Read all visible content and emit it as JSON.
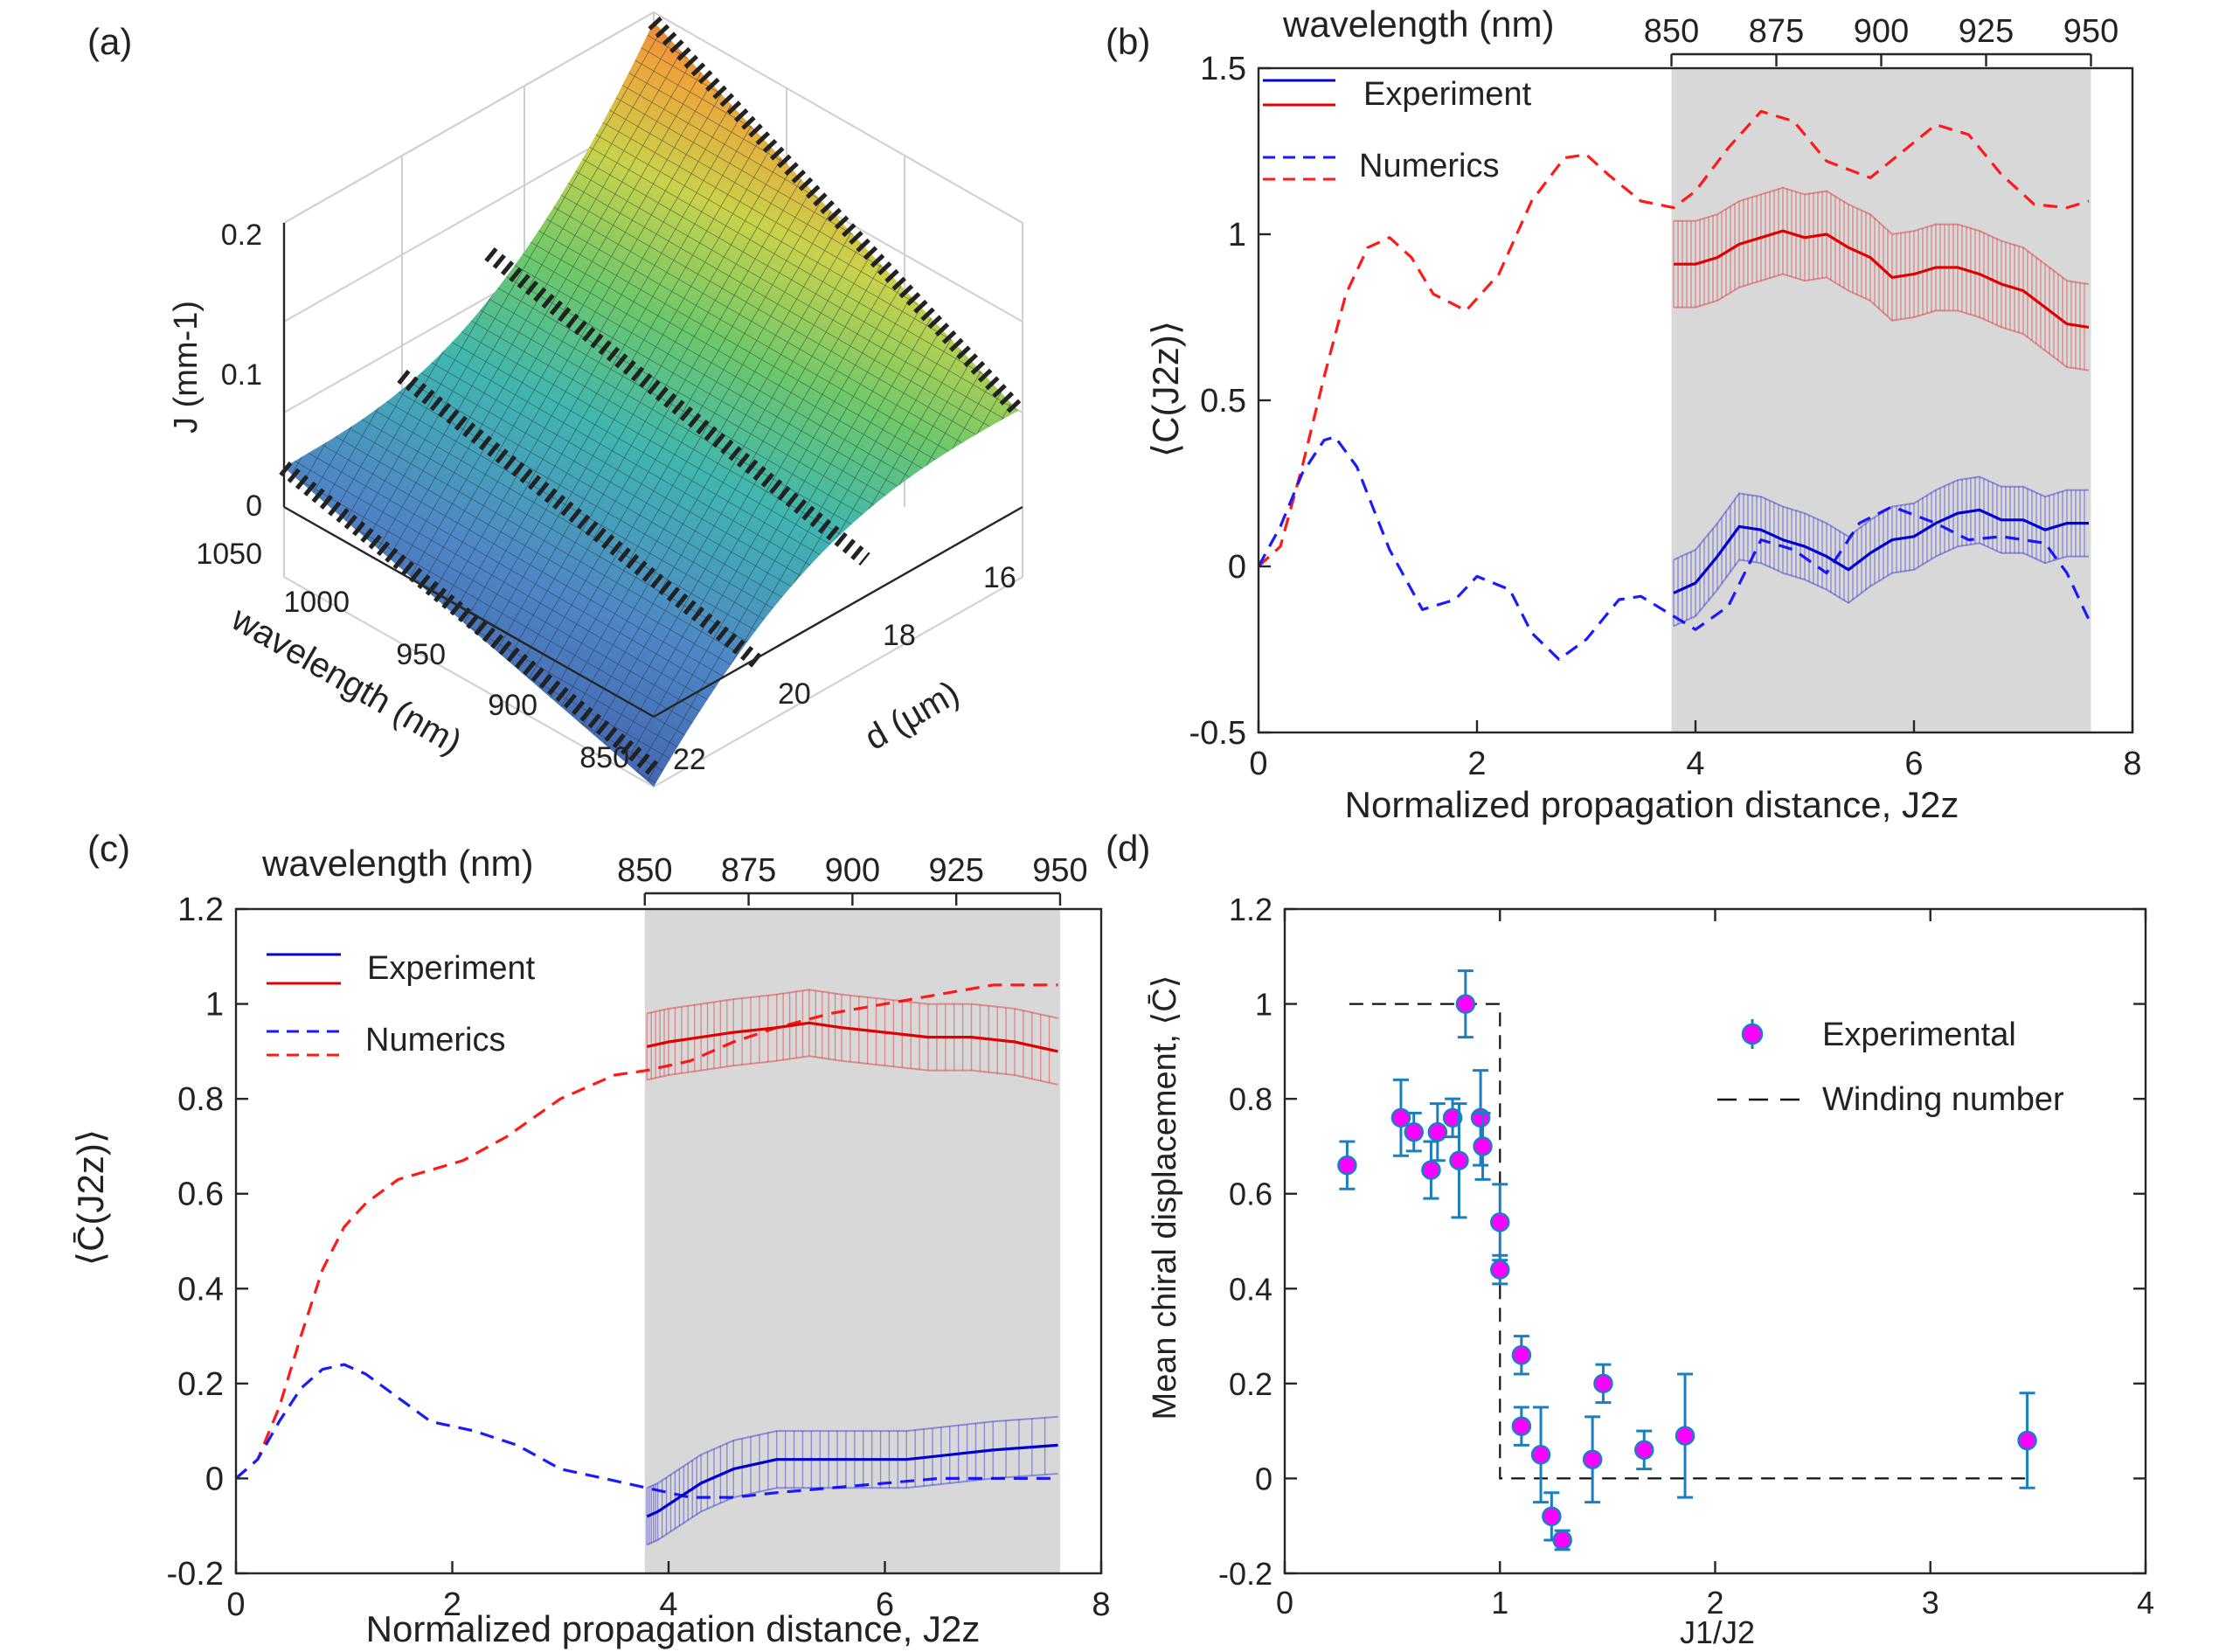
{
  "panels": {
    "a": {
      "label": "(a)"
    },
    "b": {
      "label": "(b)"
    },
    "c": {
      "label": "(c)"
    },
    "d": {
      "label": "(d)"
    }
  },
  "chart_data": [
    {
      "id": "a",
      "type": "surface3d",
      "title": "",
      "zlabel": "J (mm-1)",
      "xlabel": "wavelength (nm)",
      "ylabel": "d (µm)",
      "z_ticks": [
        "0",
        "0.1",
        "0.2"
      ],
      "wavelength_ticks": [
        "1050",
        "1000",
        "950",
        "900",
        "850"
      ],
      "d_ticks": [
        "16",
        "18",
        "20",
        "22"
      ],
      "colormap": [
        "#3e59a8",
        "#4f86c6",
        "#3fb6b0",
        "#6cc86a",
        "#c9d24a",
        "#f0a23a",
        "#d9563a"
      ],
      "marker_color": "#222222"
    },
    {
      "id": "b",
      "type": "line",
      "xlabel": "Normalized propagation distance, J2z",
      "ylabel": "⟨C(J2z)⟩",
      "xlim": [
        0,
        8
      ],
      "ylim": [
        -0.5,
        1.5
      ],
      "xticks": [
        "0",
        "2",
        "4",
        "6",
        "8"
      ],
      "yticks": [
        "-0.5",
        "0",
        "0.5",
        "1",
        "1.5"
      ],
      "top_axis": {
        "label": "wavelength (nm)",
        "ticks": [
          "850",
          "875",
          "900",
          "925",
          "950"
        ],
        "range": [
          3.78,
          7.62
        ]
      },
      "shaded_region": [
        3.78,
        7.62
      ],
      "legend": [
        "Experiment",
        "Numerics"
      ],
      "series": [
        {
          "name": "Numerics upper",
          "style": "dashed",
          "color": "#ff1a1a",
          "x": [
            0,
            0.2,
            0.4,
            0.6,
            0.8,
            1.0,
            1.2,
            1.4,
            1.6,
            1.9,
            2.2,
            2.5,
            2.8,
            3.0,
            3.2,
            3.5,
            3.8,
            4.0,
            4.3,
            4.6,
            4.9,
            5.2,
            5.6,
            5.9,
            6.2,
            6.5,
            6.8,
            7.1,
            7.4,
            7.6
          ],
          "y": [
            0,
            0.06,
            0.3,
            0.57,
            0.82,
            0.96,
            0.99,
            0.93,
            0.82,
            0.77,
            0.88,
            1.1,
            1.23,
            1.24,
            1.18,
            1.1,
            1.08,
            1.13,
            1.26,
            1.37,
            1.34,
            1.22,
            1.17,
            1.25,
            1.33,
            1.3,
            1.18,
            1.09,
            1.08,
            1.1
          ]
        },
        {
          "name": "Numerics lower",
          "style": "dashed",
          "color": "#1a1aff",
          "x": [
            0,
            0.2,
            0.4,
            0.6,
            0.7,
            0.9,
            1.2,
            1.5,
            1.8,
            2.0,
            2.3,
            2.5,
            2.75,
            3.0,
            3.3,
            3.5,
            3.8,
            4.0,
            4.3,
            4.6,
            4.9,
            5.2,
            5.5,
            5.8,
            6.2,
            6.5,
            6.8,
            7.2,
            7.4,
            7.6
          ],
          "y": [
            0,
            0.12,
            0.28,
            0.38,
            0.39,
            0.3,
            0.05,
            -0.13,
            -0.1,
            -0.03,
            -0.07,
            -0.2,
            -0.28,
            -0.22,
            -0.1,
            -0.09,
            -0.15,
            -0.19,
            -0.12,
            0.08,
            0.05,
            -0.02,
            0.13,
            0.18,
            0.13,
            0.08,
            0.09,
            0.07,
            -0.02,
            -0.16
          ]
        },
        {
          "name": "Experiment upper",
          "style": "solid",
          "color": "#e00000",
          "errorbar": 0.13,
          "x": [
            3.8,
            4.0,
            4.2,
            4.4,
            4.6,
            4.8,
            5.0,
            5.2,
            5.4,
            5.6,
            5.8,
            6.0,
            6.2,
            6.4,
            6.6,
            6.8,
            7.0,
            7.2,
            7.4,
            7.6
          ],
          "y": [
            0.91,
            0.91,
            0.93,
            0.97,
            0.99,
            1.01,
            0.99,
            1.0,
            0.96,
            0.93,
            0.87,
            0.88,
            0.9,
            0.9,
            0.88,
            0.85,
            0.83,
            0.78,
            0.73,
            0.72
          ]
        },
        {
          "name": "Experiment lower",
          "style": "solid",
          "color": "#0000d0",
          "errorbar": 0.1,
          "x": [
            3.8,
            4.0,
            4.2,
            4.4,
            4.6,
            4.8,
            5.0,
            5.2,
            5.4,
            5.6,
            5.8,
            6.0,
            6.2,
            6.4,
            6.6,
            6.8,
            7.0,
            7.2,
            7.4,
            7.6
          ],
          "y": [
            -0.08,
            -0.05,
            0.03,
            0.12,
            0.11,
            0.08,
            0.06,
            0.03,
            -0.01,
            0.04,
            0.08,
            0.09,
            0.13,
            0.16,
            0.17,
            0.14,
            0.14,
            0.11,
            0.13,
            0.13
          ]
        }
      ]
    },
    {
      "id": "c",
      "type": "line",
      "xlabel": "Normalized propagation distance, J2z",
      "ylabel": "⟨C̄(J2z)⟩",
      "xlim": [
        0,
        8
      ],
      "ylim": [
        -0.2,
        1.2
      ],
      "xticks": [
        "0",
        "2",
        "4",
        "6",
        "8"
      ],
      "yticks": [
        "-0.2",
        "0",
        "0.2",
        "0.4",
        "0.6",
        "0.8",
        "1",
        "1.2"
      ],
      "top_axis": {
        "label": "wavelength (nm)",
        "ticks": [
          "850",
          "875",
          "900",
          "925",
          "950"
        ],
        "range": [
          3.78,
          7.62
        ]
      },
      "shaded_region": [
        3.78,
        7.62
      ],
      "legend": [
        "Experiment",
        "Numerics"
      ],
      "series": [
        {
          "name": "Numerics upper",
          "style": "dashed",
          "color": "#ff1a1a",
          "x": [
            0,
            0.2,
            0.4,
            0.6,
            0.8,
            1.0,
            1.2,
            1.5,
            1.8,
            2.1,
            2.5,
            3.0,
            3.5,
            3.8,
            4.2,
            4.6,
            5.0,
            5.5,
            6.0,
            6.5,
            7.0,
            7.6
          ],
          "y": [
            0,
            0.04,
            0.15,
            0.3,
            0.44,
            0.53,
            0.58,
            0.63,
            0.65,
            0.67,
            0.72,
            0.8,
            0.85,
            0.86,
            0.88,
            0.92,
            0.95,
            0.98,
            1.0,
            1.02,
            1.04,
            1.04
          ]
        },
        {
          "name": "Numerics lower",
          "style": "dashed",
          "color": "#1a1aff",
          "x": [
            0,
            0.2,
            0.4,
            0.6,
            0.8,
            1.0,
            1.2,
            1.5,
            1.8,
            2.2,
            2.6,
            3.0,
            3.4,
            3.8,
            4.2,
            4.6,
            5.0,
            5.5,
            6.0,
            6.5,
            7.0,
            7.6
          ],
          "y": [
            0,
            0.04,
            0.12,
            0.19,
            0.23,
            0.24,
            0.22,
            0.17,
            0.12,
            0.1,
            0.07,
            0.02,
            0.0,
            -0.02,
            -0.04,
            -0.04,
            -0.03,
            -0.02,
            -0.01,
            0.0,
            0.0,
            0.0
          ]
        },
        {
          "name": "Experiment upper",
          "style": "solid",
          "color": "#e00000",
          "errorbar": 0.07,
          "x": [
            3.8,
            4.0,
            4.3,
            4.6,
            5.0,
            5.3,
            5.6,
            6.0,
            6.4,
            6.8,
            7.2,
            7.6
          ],
          "y": [
            0.91,
            0.92,
            0.93,
            0.94,
            0.95,
            0.96,
            0.95,
            0.94,
            0.93,
            0.93,
            0.92,
            0.9
          ]
        },
        {
          "name": "Experiment lower",
          "style": "solid",
          "color": "#0000d0",
          "errorbar": 0.06,
          "x": [
            3.8,
            3.9,
            4.1,
            4.3,
            4.6,
            5.0,
            5.4,
            5.8,
            6.2,
            6.6,
            7.0,
            7.6
          ],
          "y": [
            -0.08,
            -0.07,
            -0.04,
            -0.01,
            0.02,
            0.04,
            0.04,
            0.04,
            0.04,
            0.05,
            0.06,
            0.07
          ]
        }
      ]
    },
    {
      "id": "d",
      "type": "scatter",
      "xlabel": "J1/J2",
      "ylabel": "Mean chiral displacement, ⟨C̄⟩",
      "xlim": [
        0,
        4
      ],
      "ylim": [
        -0.2,
        1.2
      ],
      "xticks": [
        "0",
        "1",
        "2",
        "3",
        "4"
      ],
      "yticks": [
        "-0.2",
        "0",
        "0.2",
        "0.4",
        "0.6",
        "0.8",
        "1",
        "1.2"
      ],
      "legend": [
        "Experimental",
        "Winding number"
      ],
      "winding_number": {
        "x": [
          0.3,
          1.0,
          1.0,
          3.45
        ],
        "y": [
          1,
          1,
          0,
          0
        ]
      },
      "points": {
        "x": [
          0.29,
          0.54,
          0.6,
          0.68,
          0.71,
          0.78,
          0.81,
          0.84,
          0.91,
          0.92,
          1.0,
          1.0,
          1.1,
          1.1,
          1.19,
          1.24,
          1.29,
          1.43,
          1.48,
          1.67,
          1.86,
          3.45
        ],
        "y": [
          0.66,
          0.76,
          0.73,
          0.65,
          0.73,
          0.76,
          0.67,
          1.0,
          0.76,
          0.7,
          0.54,
          0.44,
          0.26,
          0.11,
          0.05,
          -0.08,
          -0.13,
          0.04,
          0.2,
          0.06,
          0.09,
          0.08
        ],
        "err": [
          0.05,
          0.08,
          0.04,
          0.06,
          0.06,
          0.04,
          0.12,
          0.07,
          0.1,
          0.07,
          0.08,
          0.03,
          0.04,
          0.04,
          0.1,
          0.05,
          0.02,
          0.09,
          0.04,
          0.04,
          0.13,
          0.1
        ]
      },
      "marker_face": "#ff00ff",
      "marker_edge": "#1a7fc0"
    }
  ]
}
